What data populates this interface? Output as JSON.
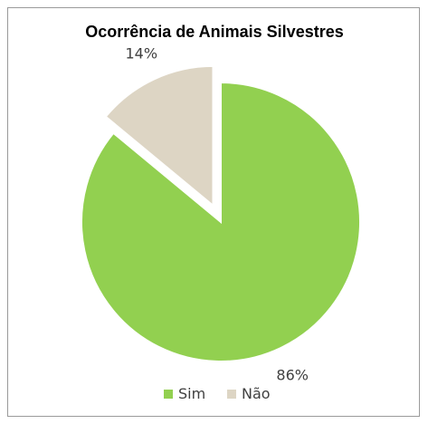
{
  "chart_data": {
    "type": "pie",
    "title": "Ocorrência de Animais Silvestres",
    "slices": [
      {
        "label": "Sim",
        "value": 86,
        "display": "86%",
        "color": "#92d050",
        "exploded": false
      },
      {
        "label": "Não",
        "value": 14,
        "display": "14%",
        "color": "#ddd5c4",
        "exploded": true
      }
    ],
    "legend": {
      "position": "bottom",
      "entries": [
        "Sim",
        "Não"
      ]
    }
  }
}
